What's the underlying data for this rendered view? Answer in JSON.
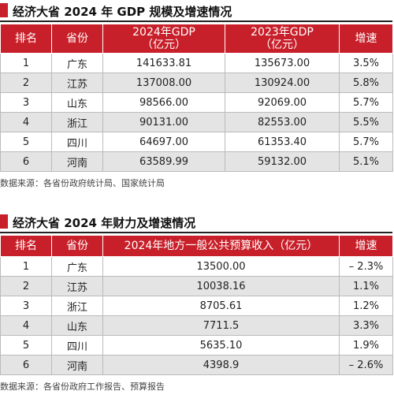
{
  "tables": [
    {
      "title": "经济大省 2024 年 GDP 规模及增速情况",
      "headers": [
        "排名",
        "省份",
        "2024年GDP\n（亿元）",
        "2023年GDP\n（亿元）",
        "增速"
      ],
      "rows": [
        [
          "1",
          "广东",
          "141633.81",
          "135673.00",
          "3.5%"
        ],
        [
          "2",
          "江苏",
          "137008.00",
          "130924.00",
          "5.8%"
        ],
        [
          "3",
          "山东",
          "98566.00",
          "92069.00",
          "5.7%"
        ],
        [
          "4",
          "浙江",
          "90131.00",
          "82553.00",
          "5.5%"
        ],
        [
          "5",
          "四川",
          "64697.00",
          "61353.40",
          "5.7%"
        ],
        [
          "6",
          "河南",
          "63589.99",
          "59132.00",
          "5.1%"
        ]
      ],
      "source": "数据来源：各省份政府统计局、国家统计局"
    },
    {
      "title": "经济大省 2024 年财力及增速情况",
      "headers": [
        "排名",
        "省份",
        "2024年地方一般公共预算收入（亿元）",
        "增速"
      ],
      "rows": [
        [
          "1",
          "广东",
          "13500.00",
          "– 2.3%"
        ],
        [
          "2",
          "江苏",
          "10038.16",
          "1.1%"
        ],
        [
          "3",
          "浙江",
          "8705.61",
          "1.2%"
        ],
        [
          "4",
          "山东",
          "7711.5",
          "3.3%"
        ],
        [
          "5",
          "四川",
          "5635.10",
          "1.9%"
        ],
        [
          "6",
          "河南",
          "4398.9",
          "– 2.6%"
        ]
      ],
      "source": "数据来源：各省份政府工作报告、预算报告"
    }
  ]
}
